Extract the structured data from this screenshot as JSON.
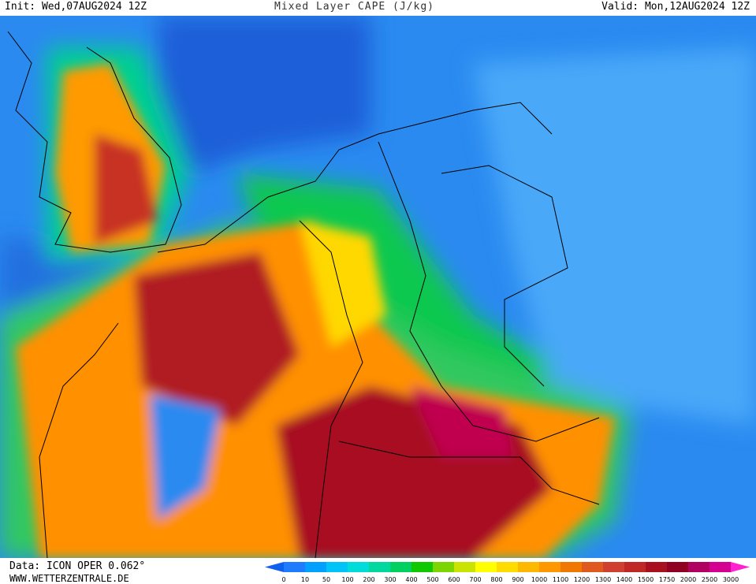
{
  "header": {
    "init": "Init: Wed,07AUG2024 12Z",
    "title": "Mixed Layer CAPE (J/kg)",
    "valid": "Valid: Mon,12AUG2024 12Z"
  },
  "footer": {
    "data": "Data: ICON OPER 0.062°",
    "site": "WWW.WETTERZENTRALE.DE"
  },
  "colorbar": {
    "ticks": [
      0,
      10,
      50,
      100,
      200,
      300,
      400,
      500,
      600,
      700,
      800,
      900,
      1000,
      1100,
      1200,
      1300,
      1400,
      1500,
      1750,
      2000,
      2500,
      3000
    ],
    "colors": [
      "#1e7cff",
      "#00a0ff",
      "#00c4f8",
      "#00dcd8",
      "#00d8a0",
      "#00d060",
      "#10c800",
      "#7cd400",
      "#c8e400",
      "#ffff00",
      "#ffdc00",
      "#ffb800",
      "#ff9800",
      "#f07800",
      "#e05a20",
      "#d04030",
      "#c02828",
      "#a81020",
      "#900020",
      "#b00060",
      "#d40090"
    ],
    "under_color": "#1060f0",
    "over_color": "#ff20d0"
  }
}
